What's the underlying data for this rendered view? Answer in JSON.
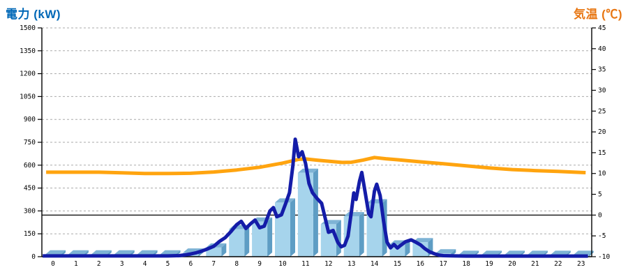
{
  "titles": {
    "left": "電力 (kW)",
    "right": "気温 (℃)"
  },
  "colors": {
    "left_title": "#0068B7",
    "right_title": "#E87612",
    "grid": "#AAAAAA",
    "axis": "#000000",
    "bar_face": "#A6D4EC",
    "bar_side": "#5E9DC4",
    "bar_top": "#7EB3D5",
    "power_line": "#141CA8",
    "temp_line": "#FFA40F"
  },
  "chart_data": {
    "type": "combo-bar-line-dual-axis",
    "x_axis": {
      "unit": "hour",
      "ticks": [
        0,
        1,
        2,
        3,
        4,
        5,
        6,
        7,
        8,
        9,
        10,
        11,
        12,
        13,
        14,
        15,
        16,
        17,
        18,
        19,
        20,
        21,
        22,
        23
      ]
    },
    "left_axis": {
      "title": "電力 (kW)",
      "min": 0,
      "max": 1500,
      "step": 150
    },
    "right_axis": {
      "title": "気温 (℃)",
      "min": -10,
      "max": 45,
      "step": 5
    },
    "grid": "dashed horizontal at each left-axis step; solid black line at right-axis 0",
    "legend": "none",
    "series": [
      {
        "name": "power-bars",
        "type": "bar",
        "axis": "left",
        "categories": [
          0,
          1,
          2,
          3,
          4,
          5,
          6,
          7,
          8,
          9,
          10,
          11,
          12,
          13,
          14,
          15,
          16,
          17,
          18,
          19,
          20,
          21,
          22,
          23
        ],
        "values": [
          15,
          15,
          15,
          15,
          15,
          15,
          27,
          60,
          180,
          230,
          355,
          550,
          213,
          265,
          350,
          80,
          95,
          22,
          12,
          12,
          12,
          12,
          12,
          12
        ]
      },
      {
        "name": "power-line",
        "type": "line",
        "axis": "left",
        "points": [
          [
            -0.45,
            5
          ],
          [
            0,
            5
          ],
          [
            1,
            5
          ],
          [
            2,
            5
          ],
          [
            3,
            5
          ],
          [
            4,
            5
          ],
          [
            5,
            5
          ],
          [
            5.5,
            7
          ],
          [
            5.75,
            12
          ],
          [
            6,
            18
          ],
          [
            6.25,
            26
          ],
          [
            6.5,
            38
          ],
          [
            6.75,
            52
          ],
          [
            7,
            68
          ],
          [
            7.25,
            100
          ],
          [
            7.5,
            125
          ],
          [
            7.75,
            165
          ],
          [
            8,
            210
          ],
          [
            8.2,
            232
          ],
          [
            8.4,
            185
          ],
          [
            8.6,
            215
          ],
          [
            8.8,
            240
          ],
          [
            9,
            190
          ],
          [
            9.2,
            200
          ],
          [
            9.45,
            300
          ],
          [
            9.6,
            322
          ],
          [
            9.75,
            262
          ],
          [
            9.95,
            275
          ],
          [
            10.15,
            355
          ],
          [
            10.3,
            420
          ],
          [
            10.45,
            600
          ],
          [
            10.55,
            770
          ],
          [
            10.7,
            655
          ],
          [
            10.85,
            688
          ],
          [
            11,
            612
          ],
          [
            11.15,
            480
          ],
          [
            11.3,
            420
          ],
          [
            11.5,
            382
          ],
          [
            11.7,
            350
          ],
          [
            11.85,
            255
          ],
          [
            12,
            160
          ],
          [
            12.2,
            172
          ],
          [
            12.4,
            95
          ],
          [
            12.55,
            65
          ],
          [
            12.7,
            75
          ],
          [
            12.85,
            135
          ],
          [
            13,
            300
          ],
          [
            13.1,
            418
          ],
          [
            13.2,
            375
          ],
          [
            13.35,
            495
          ],
          [
            13.45,
            552
          ],
          [
            13.6,
            420
          ],
          [
            13.75,
            282
          ],
          [
            13.85,
            262
          ],
          [
            14,
            430
          ],
          [
            14.1,
            475
          ],
          [
            14.25,
            400
          ],
          [
            14.4,
            230
          ],
          [
            14.55,
            95
          ],
          [
            14.7,
            58
          ],
          [
            14.85,
            80
          ],
          [
            15,
            57
          ],
          [
            15.15,
            75
          ],
          [
            15.35,
            98
          ],
          [
            15.6,
            110
          ],
          [
            15.8,
            95
          ],
          [
            16,
            78
          ],
          [
            16.2,
            52
          ],
          [
            16.4,
            32
          ],
          [
            16.6,
            20
          ],
          [
            16.8,
            11
          ],
          [
            17,
            7
          ],
          [
            17.5,
            5
          ],
          [
            18,
            4
          ],
          [
            19,
            4
          ],
          [
            20,
            4
          ],
          [
            21,
            4
          ],
          [
            22,
            4
          ],
          [
            23,
            4
          ],
          [
            23.3,
            4
          ]
        ]
      },
      {
        "name": "temperature-line",
        "type": "line",
        "axis": "right",
        "points": [
          [
            -0.3,
            10.3
          ],
          [
            0,
            10.3
          ],
          [
            1,
            10.3
          ],
          [
            2,
            10.3
          ],
          [
            3,
            10.15
          ],
          [
            4,
            10.0
          ],
          [
            5,
            10.0
          ],
          [
            6,
            10.05
          ],
          [
            7,
            10.35
          ],
          [
            8,
            10.85
          ],
          [
            9,
            11.5
          ],
          [
            10,
            12.5
          ],
          [
            10.7,
            13.4
          ],
          [
            11,
            13.5
          ],
          [
            11.5,
            13.2
          ],
          [
            12,
            12.95
          ],
          [
            12.6,
            12.65
          ],
          [
            13,
            12.7
          ],
          [
            13.5,
            13.2
          ],
          [
            14,
            13.85
          ],
          [
            14.5,
            13.55
          ],
          [
            15,
            13.3
          ],
          [
            16,
            12.8
          ],
          [
            17,
            12.35
          ],
          [
            18,
            11.85
          ],
          [
            19,
            11.35
          ],
          [
            20,
            10.95
          ],
          [
            21,
            10.7
          ],
          [
            22,
            10.5
          ],
          [
            23,
            10.25
          ],
          [
            23.2,
            10.2
          ]
        ]
      }
    ]
  }
}
